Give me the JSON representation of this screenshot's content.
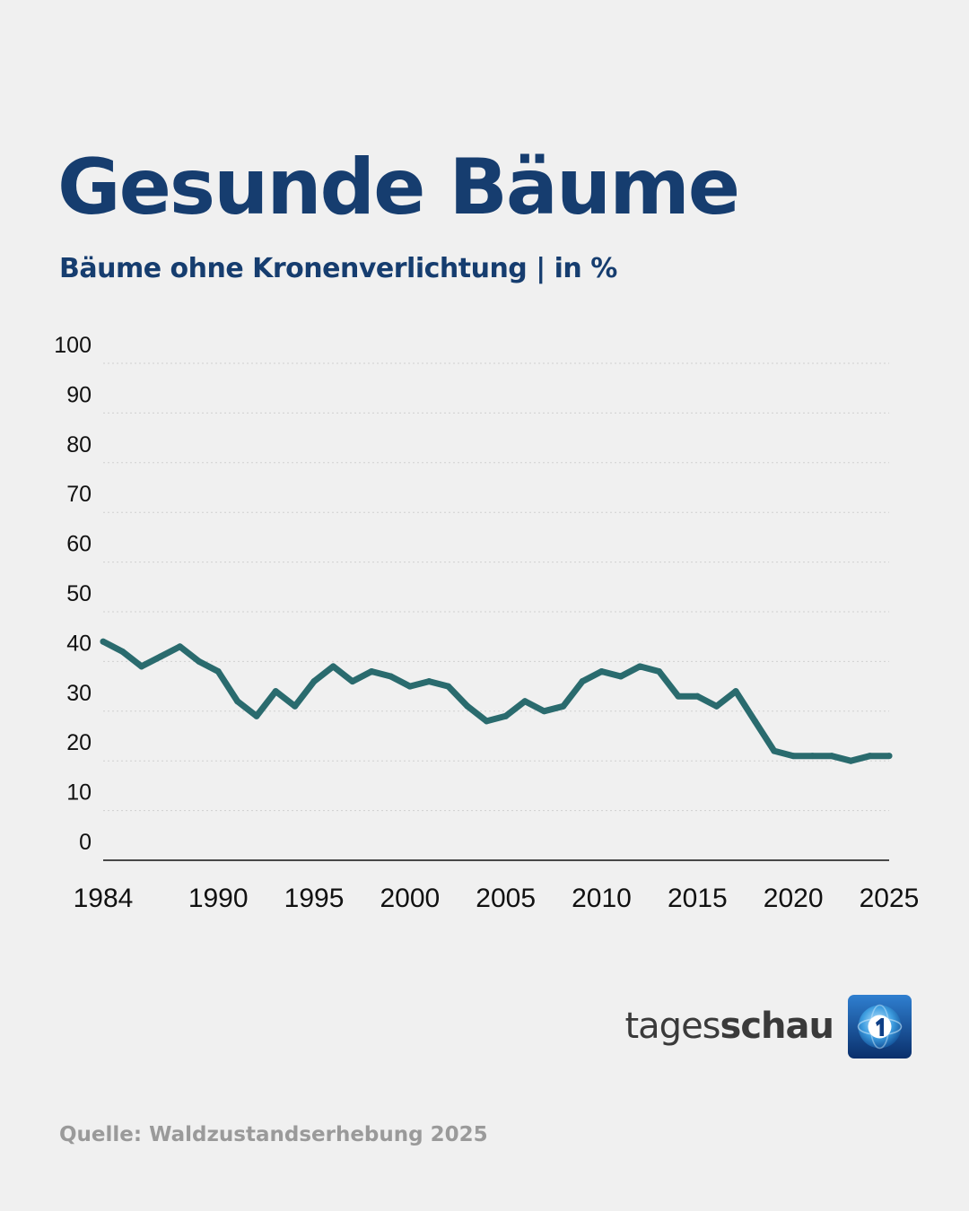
{
  "header": {
    "title": "Gesunde Bäume",
    "subtitle": "Bäume ohne Kronenverlichtung | in %"
  },
  "footer": {
    "brand_light": "tages",
    "brand_bold": "schau",
    "brand_logo_icon": "tagesschau-1-logo-icon",
    "source": "Quelle: Waldzustandserhebung 2025"
  },
  "colors": {
    "title": "#163d6f",
    "line": "#2a6b6e",
    "grid": "#cfcfcf",
    "source": "#9a9a9a",
    "background": "#f0f0f0"
  },
  "chart_data": {
    "type": "line",
    "title": "Gesunde Bäume",
    "subtitle": "Bäume ohne Kronenverlichtung | in %",
    "xlabel": "",
    "ylabel": "",
    "xlim": [
      1984,
      2025
    ],
    "ylim": [
      0,
      100
    ],
    "x_ticks": [
      "1984",
      "1990",
      "1995",
      "2000",
      "2005",
      "2010",
      "2015",
      "2020",
      "2025"
    ],
    "y_ticks": [
      "0",
      "10",
      "20",
      "30",
      "40",
      "50",
      "60",
      "70",
      "80",
      "90",
      "100"
    ],
    "grid": "horizontal dotted",
    "legend": "none",
    "series": [
      {
        "x": [
          1984,
          1985,
          1986,
          1987,
          1988,
          1989,
          1990,
          1991,
          1992,
          1993,
          1994,
          1995,
          1996,
          1997,
          1998,
          1999,
          2000,
          2001,
          2002,
          2003,
          2004,
          2005,
          2006,
          2007,
          2008,
          2009,
          2010,
          2011,
          2012,
          2013,
          2014,
          2015,
          2016,
          2017,
          2018,
          2019,
          2020,
          2021,
          2022,
          2023,
          2024,
          2025
        ],
        "values": [
          44,
          42,
          39,
          41,
          43,
          40,
          38,
          32,
          29,
          34,
          31,
          36,
          39,
          36,
          38,
          37,
          35,
          36,
          35,
          31,
          28,
          29,
          32,
          30,
          31,
          36,
          38,
          37,
          39,
          38,
          33,
          33,
          31,
          34,
          28,
          22,
          21,
          21,
          21,
          20,
          21,
          21
        ]
      }
    ]
  }
}
